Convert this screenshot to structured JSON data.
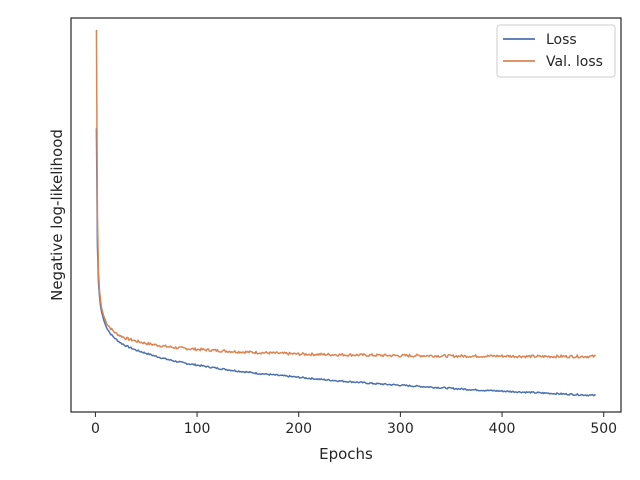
{
  "chart_data": {
    "type": "line",
    "title": "",
    "xlabel": "Epochs",
    "ylabel": "Negative log-likelihood",
    "xlim": [
      -24,
      517
    ],
    "ylim": [
      0,
      1
    ],
    "x_ticks": [
      0,
      100,
      200,
      300,
      400,
      500
    ],
    "x_tick_labels": [
      "0",
      "100",
      "200",
      "300",
      "400",
      "500"
    ],
    "y_ticks_visible": false,
    "grid": false,
    "legend_position": "top-right",
    "series": [
      {
        "name": "Loss",
        "color": "#4c72b0",
        "x": [
          1,
          2,
          3,
          4,
          5,
          6,
          8,
          10,
          12,
          15,
          20,
          25,
          30,
          40,
          50,
          60,
          70,
          80,
          90,
          100,
          120,
          140,
          160,
          180,
          200,
          225,
          250,
          275,
          300,
          325,
          350,
          375,
          400,
          425,
          450,
          475,
          492
        ],
        "y": [
          0.72,
          0.42,
          0.33,
          0.295,
          0.27,
          0.255,
          0.235,
          0.22,
          0.21,
          0.198,
          0.185,
          0.175,
          0.168,
          0.157,
          0.149,
          0.141,
          0.134,
          0.128,
          0.123,
          0.119,
          0.111,
          0.104,
          0.098,
          0.093,
          0.088,
          0.082,
          0.077,
          0.072,
          0.068,
          0.064,
          0.06,
          0.056,
          0.053,
          0.05,
          0.047,
          0.044,
          0.042
        ]
      },
      {
        "name": "Val. loss",
        "color": "#dd8452",
        "x": [
          1,
          2,
          3,
          4,
          5,
          6,
          8,
          10,
          12,
          15,
          20,
          25,
          30,
          40,
          50,
          60,
          70,
          80,
          90,
          100,
          120,
          140,
          160,
          180,
          200,
          225,
          250,
          275,
          300,
          325,
          350,
          375,
          400,
          425,
          450,
          475,
          492
        ],
        "y": [
          0.97,
          0.5,
          0.36,
          0.31,
          0.285,
          0.265,
          0.245,
          0.232,
          0.222,
          0.212,
          0.2,
          0.193,
          0.187,
          0.18,
          0.174,
          0.17,
          0.166,
          0.163,
          0.161,
          0.159,
          0.156,
          0.153,
          0.151,
          0.149,
          0.147,
          0.146,
          0.145,
          0.144,
          0.143,
          0.143,
          0.142,
          0.142,
          0.142,
          0.141,
          0.141,
          0.141,
          0.141
        ]
      }
    ]
  }
}
